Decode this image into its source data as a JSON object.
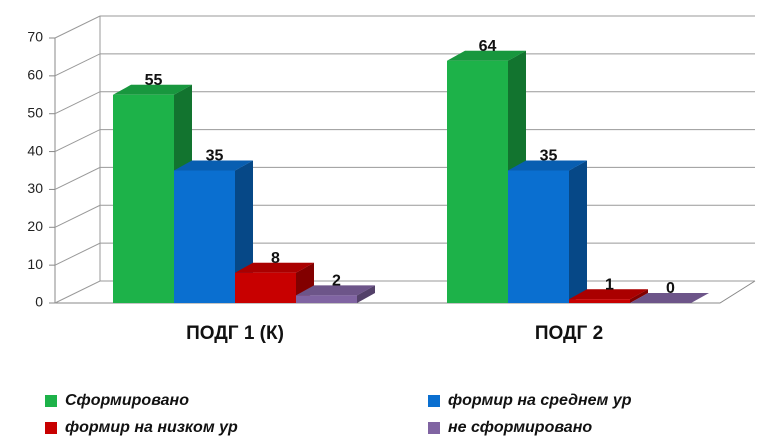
{
  "chart_data": {
    "type": "bar3d",
    "categories": [
      "ПОДГ 1 (К)",
      "ПОДГ 2"
    ],
    "series": [
      {
        "name": "Сформировано",
        "color": "#1db249",
        "values": [
          55,
          64
        ]
      },
      {
        "name": "формир на среднем ур",
        "color": "#0a6fd0",
        "values": [
          35,
          35
        ]
      },
      {
        "name": "формир на низком ур",
        "color": "#c80000",
        "values": [
          8,
          1
        ]
      },
      {
        "name": "не сформировано",
        "color": "#8064a2",
        "values": [
          2,
          0
        ]
      }
    ],
    "ylim": [
      0,
      70
    ],
    "yticks": [
      0,
      10,
      20,
      30,
      40,
      50,
      60,
      70
    ],
    "grid": true,
    "legend": "bottom"
  }
}
